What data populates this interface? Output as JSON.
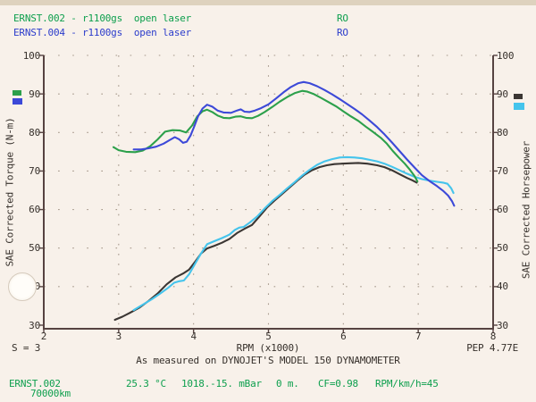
{
  "header": {
    "runs": [
      {
        "label": "ERNST.002 - r1100gs  open laser",
        "tag": "RO",
        "color": "#0d9f4d"
      },
      {
        "label": "ERNST.004 - r1100gs  open laser",
        "tag": "RO",
        "color": "#2b3ccb"
      }
    ]
  },
  "chart_data": {
    "type": "line",
    "title": "",
    "x_axis": {
      "label": "RPM (x1000)",
      "min": 2,
      "max": 8,
      "ticks": [
        2,
        3,
        4,
        5,
        6,
        7,
        8
      ]
    },
    "y_axis_left": {
      "label": "SAE Corrected Torque (N-m)",
      "min": 30,
      "max": 100,
      "ticks": [
        30,
        40,
        50,
        60,
        70,
        80,
        90,
        100
      ]
    },
    "y_axis_right": {
      "label": "SAE Corrected Horsepower",
      "min": 30,
      "max": 100,
      "ticks": [
        30,
        40,
        50,
        60,
        70,
        80,
        90,
        100
      ]
    },
    "grid": {
      "color": "#a5988a",
      "frame_color": "#564341",
      "grid_on": true
    },
    "legend_position": "outside-margins",
    "series": [
      {
        "name": "ERNST.002 torque",
        "axis": "left",
        "color": "#2ca04b",
        "points": [
          [
            2.93,
            76.2
          ],
          [
            3.0,
            75.4
          ],
          [
            3.1,
            75.0
          ],
          [
            3.22,
            74.9
          ],
          [
            3.32,
            75.3
          ],
          [
            3.42,
            76.4
          ],
          [
            3.52,
            78.2
          ],
          [
            3.62,
            80.2
          ],
          [
            3.72,
            80.6
          ],
          [
            3.82,
            80.5
          ],
          [
            3.9,
            80.0
          ],
          [
            3.98,
            81.8
          ],
          [
            4.05,
            84.2
          ],
          [
            4.12,
            85.5
          ],
          [
            4.18,
            85.9
          ],
          [
            4.25,
            85.3
          ],
          [
            4.32,
            84.4
          ],
          [
            4.4,
            83.8
          ],
          [
            4.48,
            83.7
          ],
          [
            4.56,
            84.1
          ],
          [
            4.63,
            84.2
          ],
          [
            4.7,
            83.8
          ],
          [
            4.78,
            83.7
          ],
          [
            4.86,
            84.3
          ],
          [
            4.95,
            85.3
          ],
          [
            5.05,
            86.6
          ],
          [
            5.15,
            88.0
          ],
          [
            5.25,
            89.2
          ],
          [
            5.35,
            90.2
          ],
          [
            5.45,
            90.8
          ],
          [
            5.52,
            90.6
          ],
          [
            5.6,
            90.0
          ],
          [
            5.7,
            89.0
          ],
          [
            5.8,
            87.9
          ],
          [
            5.9,
            86.8
          ],
          [
            6.0,
            85.5
          ],
          [
            6.1,
            84.2
          ],
          [
            6.2,
            83.0
          ],
          [
            6.3,
            81.5
          ],
          [
            6.4,
            80.1
          ],
          [
            6.5,
            78.6
          ],
          [
            6.58,
            77.1
          ],
          [
            6.66,
            75.2
          ],
          [
            6.74,
            73.5
          ],
          [
            6.82,
            71.9
          ],
          [
            6.89,
            70.3
          ],
          [
            6.95,
            68.7
          ],
          [
            6.99,
            67.3
          ]
        ]
      },
      {
        "name": "ERNST.004 torque",
        "axis": "left",
        "color": "#3c49d8",
        "points": [
          [
            3.2,
            75.6
          ],
          [
            3.3,
            75.6
          ],
          [
            3.4,
            75.9
          ],
          [
            3.5,
            76.3
          ],
          [
            3.6,
            77.1
          ],
          [
            3.68,
            78.0
          ],
          [
            3.75,
            78.8
          ],
          [
            3.81,
            78.2
          ],
          [
            3.86,
            77.3
          ],
          [
            3.91,
            77.6
          ],
          [
            3.96,
            79.2
          ],
          [
            4.01,
            81.6
          ],
          [
            4.06,
            84.2
          ],
          [
            4.12,
            86.2
          ],
          [
            4.18,
            87.2
          ],
          [
            4.25,
            86.7
          ],
          [
            4.32,
            85.7
          ],
          [
            4.4,
            85.2
          ],
          [
            4.5,
            85.1
          ],
          [
            4.58,
            85.7
          ],
          [
            4.63,
            86.0
          ],
          [
            4.68,
            85.4
          ],
          [
            4.75,
            85.3
          ],
          [
            4.82,
            85.7
          ],
          [
            4.9,
            86.3
          ],
          [
            5.0,
            87.3
          ],
          [
            5.1,
            88.8
          ],
          [
            5.2,
            90.4
          ],
          [
            5.3,
            91.8
          ],
          [
            5.4,
            92.8
          ],
          [
            5.47,
            93.1
          ],
          [
            5.55,
            92.8
          ],
          [
            5.65,
            92.0
          ],
          [
            5.75,
            91.0
          ],
          [
            5.85,
            89.9
          ],
          [
            5.95,
            88.7
          ],
          [
            6.05,
            87.4
          ],
          [
            6.15,
            86.1
          ],
          [
            6.25,
            84.7
          ],
          [
            6.35,
            83.1
          ],
          [
            6.45,
            81.4
          ],
          [
            6.55,
            79.5
          ],
          [
            6.65,
            77.4
          ],
          [
            6.75,
            75.2
          ],
          [
            6.85,
            73.0
          ],
          [
            6.95,
            70.9
          ],
          [
            7.05,
            68.9
          ],
          [
            7.15,
            67.4
          ],
          [
            7.25,
            66.1
          ],
          [
            7.33,
            64.9
          ],
          [
            7.4,
            63.6
          ],
          [
            7.45,
            62.2
          ],
          [
            7.48,
            61.0
          ]
        ]
      },
      {
        "name": "ERNST.002 horsepower",
        "axis": "right",
        "color": "#3b3633",
        "points": [
          [
            2.95,
            31.4
          ],
          [
            3.05,
            32.2
          ],
          [
            3.15,
            33.2
          ],
          [
            3.28,
            34.6
          ],
          [
            3.4,
            36.3
          ],
          [
            3.52,
            38.2
          ],
          [
            3.64,
            40.6
          ],
          [
            3.76,
            42.4
          ],
          [
            3.86,
            43.4
          ],
          [
            3.94,
            44.4
          ],
          [
            4.02,
            46.4
          ],
          [
            4.1,
            48.6
          ],
          [
            4.18,
            49.9
          ],
          [
            4.28,
            50.6
          ],
          [
            4.38,
            51.4
          ],
          [
            4.48,
            52.4
          ],
          [
            4.58,
            53.9
          ],
          [
            4.68,
            55.0
          ],
          [
            4.78,
            56.0
          ],
          [
            4.88,
            58.2
          ],
          [
            4.98,
            60.5
          ],
          [
            5.08,
            62.3
          ],
          [
            5.18,
            64.0
          ],
          [
            5.28,
            65.7
          ],
          [
            5.38,
            67.4
          ],
          [
            5.48,
            69.0
          ],
          [
            5.58,
            70.2
          ],
          [
            5.68,
            71.0
          ],
          [
            5.78,
            71.5
          ],
          [
            5.88,
            71.8
          ],
          [
            5.98,
            71.9
          ],
          [
            6.08,
            72.0
          ],
          [
            6.2,
            72.1
          ],
          [
            6.32,
            71.9
          ],
          [
            6.45,
            71.5
          ],
          [
            6.55,
            71.0
          ],
          [
            6.65,
            70.2
          ],
          [
            6.75,
            69.2
          ],
          [
            6.85,
            68.2
          ],
          [
            6.92,
            67.6
          ],
          [
            6.98,
            67.0
          ]
        ]
      },
      {
        "name": "ERNST.004 horsepower",
        "axis": "right",
        "color": "#45c4ec",
        "points": [
          [
            3.2,
            33.9
          ],
          [
            3.32,
            35.3
          ],
          [
            3.44,
            36.7
          ],
          [
            3.56,
            38.3
          ],
          [
            3.66,
            39.7
          ],
          [
            3.74,
            41.0
          ],
          [
            3.81,
            41.4
          ],
          [
            3.87,
            41.6
          ],
          [
            3.94,
            43.2
          ],
          [
            4.02,
            45.9
          ],
          [
            4.1,
            48.6
          ],
          [
            4.18,
            51.0
          ],
          [
            4.28,
            51.8
          ],
          [
            4.38,
            52.6
          ],
          [
            4.48,
            53.5
          ],
          [
            4.55,
            54.7
          ],
          [
            4.61,
            55.3
          ],
          [
            4.67,
            55.5
          ],
          [
            4.75,
            56.6
          ],
          [
            4.85,
            58.2
          ],
          [
            4.95,
            60.3
          ],
          [
            5.05,
            62.2
          ],
          [
            5.15,
            63.8
          ],
          [
            5.25,
            65.5
          ],
          [
            5.35,
            67.1
          ],
          [
            5.45,
            68.8
          ],
          [
            5.55,
            70.3
          ],
          [
            5.65,
            71.6
          ],
          [
            5.75,
            72.5
          ],
          [
            5.85,
            73.1
          ],
          [
            5.95,
            73.5
          ],
          [
            6.05,
            73.6
          ],
          [
            6.15,
            73.5
          ],
          [
            6.25,
            73.3
          ],
          [
            6.35,
            72.9
          ],
          [
            6.45,
            72.5
          ],
          [
            6.55,
            71.9
          ],
          [
            6.65,
            71.1
          ],
          [
            6.75,
            70.2
          ],
          [
            6.85,
            69.3
          ],
          [
            6.95,
            68.5
          ],
          [
            7.05,
            67.9
          ],
          [
            7.15,
            67.5
          ],
          [
            7.25,
            67.2
          ],
          [
            7.33,
            67.0
          ],
          [
            7.39,
            66.7
          ],
          [
            7.44,
            65.5
          ],
          [
            7.47,
            64.3
          ]
        ]
      }
    ]
  },
  "annotations": {
    "s_value": "S = 3",
    "pep": "PEP 4.77E",
    "measured_on": "As measured on DYNOJET'S MODEL 150 DYNAMOMETER"
  },
  "footer": {
    "color": "#0d9f4d",
    "file": "ERNST.002",
    "temperature": "25.3 °C",
    "pressure": "1018.-15. mBar",
    "altitude": "0 m.",
    "correction": "CF=0.98",
    "rpm_ratio": "RPM/km/h=45",
    "odometer": "70000km"
  }
}
